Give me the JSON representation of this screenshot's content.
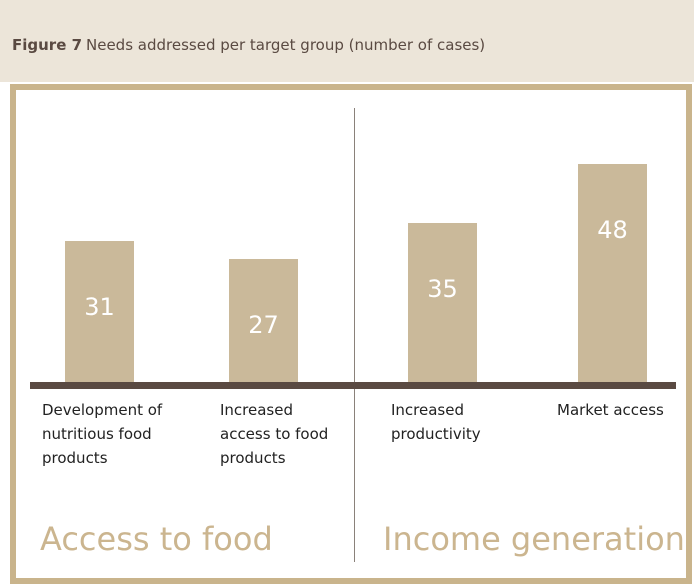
{
  "chart_data": {
    "type": "bar",
    "title": "Figure 7",
    "subtitle": "Needs addressed per target group (number of cases)",
    "groups": [
      "Access to food",
      "Income generation"
    ],
    "categories": [
      "Development of nutritious food products",
      "Increased access to food products",
      "Increased productivity",
      "Market access"
    ],
    "values": [
      31,
      27,
      35,
      48
    ],
    "color": "#cab99a"
  }
}
